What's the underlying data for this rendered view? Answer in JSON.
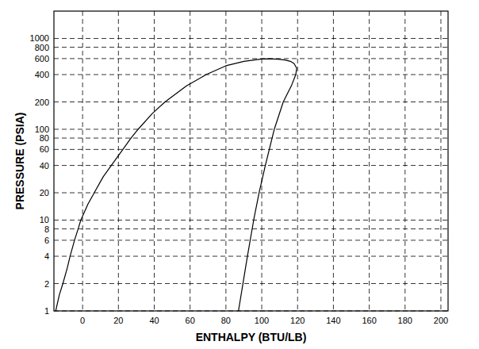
{
  "chart_data": {
    "type": "line",
    "x_label": "ENTHALPY (BTU/LB)",
    "y_label": "PRESSURE (PSIA)",
    "log": "y",
    "grid": true,
    "xlim": [
      -16,
      204
    ],
    "ylim": [
      1,
      2000
    ],
    "xticks": [
      0,
      20,
      40,
      60,
      80,
      100,
      120,
      140,
      160,
      180,
      200
    ],
    "yticks": [
      1,
      2,
      4,
      6,
      8,
      10,
      20,
      40,
      60,
      80,
      100,
      200,
      400,
      600,
      800,
      1000
    ],
    "series": [
      {
        "color": "#000000",
        "x": [
          -15,
          -13,
          -11,
          -8.5,
          -7,
          -4.5,
          -2.5,
          -1,
          3,
          6.5,
          11.5,
          16,
          22.5,
          27,
          31,
          39,
          46,
          58,
          69,
          80,
          90,
          100
        ],
        "values": [
          1,
          1.5,
          2,
          3,
          4,
          6,
          8,
          10,
          15,
          20,
          30,
          40,
          60,
          80,
          100,
          150,
          200,
          300,
          400,
          500,
          560,
          595
        ]
      },
      {
        "color": "#000000",
        "x": [
          87,
          89.5,
          92,
          95.5,
          98.5,
          102,
          107,
          112,
          116.5,
          119,
          119.5,
          118,
          116,
          113,
          109,
          104,
          100
        ],
        "values": [
          1,
          2,
          4,
          10,
          20,
          40,
          100,
          200,
          300,
          400,
          470,
          530,
          560,
          580,
          592,
          598,
          595
        ]
      }
    ]
  }
}
